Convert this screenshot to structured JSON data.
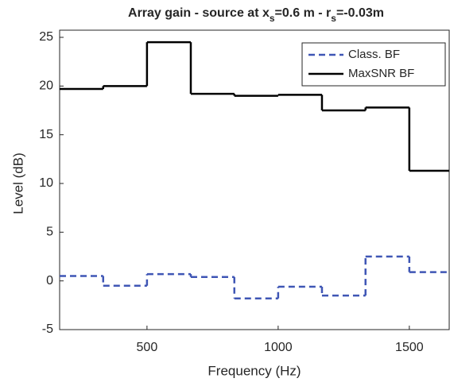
{
  "chart_data": {
    "type": "step",
    "title_parts": [
      {
        "text": "Array gain - source at x"
      },
      {
        "text": "s",
        "sub": true
      },
      {
        "text": "=0.6 m - r"
      },
      {
        "text": "s",
        "sub": true
      },
      {
        "text": "=-0.03m"
      }
    ],
    "x_label": "Frequency (Hz)",
    "y_label": "Level (dB)",
    "x": [
      167,
      333,
      500,
      667,
      833,
      1000,
      1167,
      1333,
      1500
    ],
    "series": [
      {
        "name": "Class. BF",
        "color": "#3f56b5",
        "dash": true,
        "values": [
          0.5,
          -0.5,
          0.7,
          0.4,
          -1.8,
          -0.6,
          -1.5,
          2.5,
          0.9
        ]
      },
      {
        "name": "MaxSNR BF",
        "color": "#000000",
        "dash": false,
        "values": [
          19.7,
          20.0,
          24.5,
          19.2,
          19.0,
          19.1,
          17.5,
          17.8,
          11.3
        ]
      }
    ],
    "xlim": [
      167,
      1652
    ],
    "ylim": [
      -5,
      25
    ],
    "xticks": [
      500,
      1000,
      1500
    ],
    "yticks": [
      -5,
      0,
      5,
      10,
      15,
      20,
      25
    ],
    "legend": "top-right"
  }
}
